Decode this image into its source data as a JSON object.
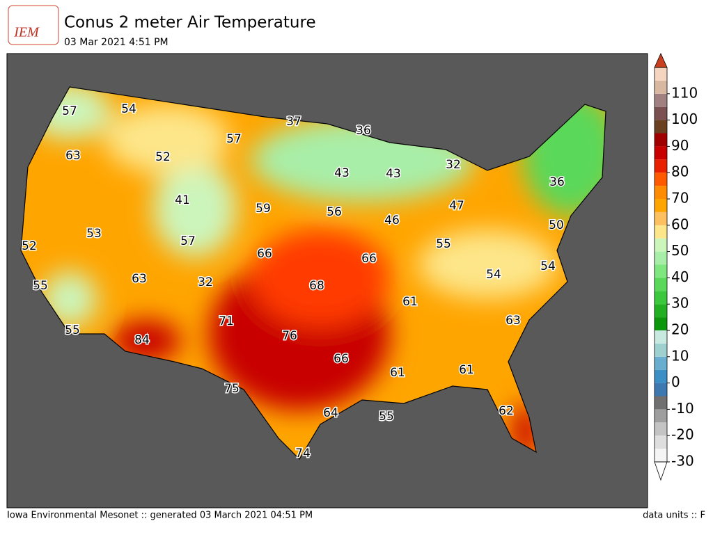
{
  "header": {
    "logo": "IEM",
    "title": "Conus 2 meter Air Temperature",
    "subtitle": "03 Mar 2021 4:51 PM"
  },
  "map": {
    "labels": [
      57,
      54,
      37,
      36,
      57,
      63,
      52,
      43,
      43,
      32,
      36,
      41,
      59,
      56,
      47,
      46,
      50,
      53,
      57,
      52,
      55,
      66,
      66,
      54,
      55,
      63,
      54,
      32,
      68,
      61,
      71,
      63,
      55,
      84,
      76,
      66,
      61,
      61,
      75,
      64,
      55,
      62,
      74
    ]
  },
  "colorbar": {
    "ylim": [
      -30,
      120
    ],
    "yticks": [
      -30,
      -20,
      -10,
      0,
      10,
      20,
      30,
      40,
      50,
      60,
      70,
      80,
      90,
      100,
      110
    ],
    "colors": [
      "#f5f5f5",
      "#dedede",
      "#c4c4c4",
      "#9e9e9e",
      "#707070",
      "#3d78b0",
      "#3b8fc4",
      "#6aaecf",
      "#9fd0d0",
      "#c7e9e0",
      "#0c960c",
      "#22b022",
      "#3cc83c",
      "#5ad85a",
      "#80e680",
      "#a8eea8",
      "#ccf5bc",
      "#fde68a",
      "#fcc060",
      "#ffa500",
      "#ff8c00",
      "#ff5a00",
      "#e82000",
      "#c80000",
      "#a00000",
      "#6a4020",
      "#7a5050",
      "#a08080",
      "#d8b8a0",
      "#f5d5c0"
    ],
    "above": "#c84020",
    "below": "#ffffff"
  },
  "footer": {
    "left": "Iowa Environmental Mesonet :: generated 03 March 2021 04:51 PM",
    "right": "data units :: F"
  }
}
